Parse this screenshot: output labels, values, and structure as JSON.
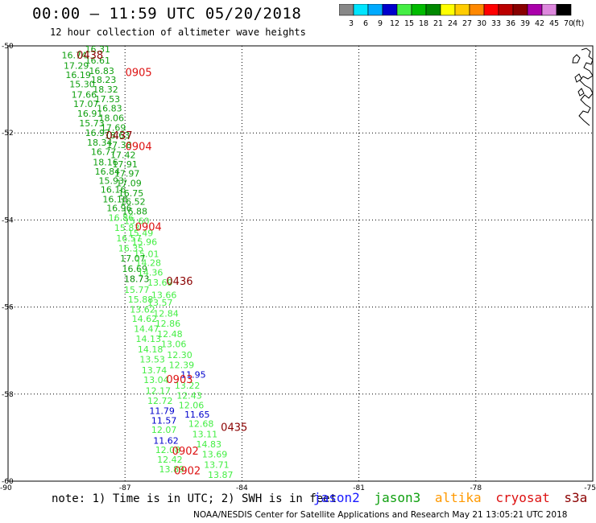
{
  "title": "00:00 – 11:59 UTC 05/20/2018",
  "subtitle": "12 hour collection of altimeter wave heights",
  "note": "note: 1) Time is in UTC; 2) SWH is in feet",
  "credit": "NOAA/NESDIS Center for Satellite Applications and Research   May 21 13:05:21 UTC 2018",
  "satellites": [
    {
      "name": "jason2",
      "color": "#1a1aff"
    },
    {
      "name": "jason3",
      "color": "#10a010"
    },
    {
      "name": "altika",
      "color": "#ff9900"
    },
    {
      "name": "cryosat",
      "color": "#dd1111"
    },
    {
      "name": "s3a",
      "color": "#8b0000"
    }
  ],
  "color_scale": {
    "unit": "(ft)",
    "bins": [
      {
        "label": "3",
        "color": "#888888"
      },
      {
        "label": "6",
        "color": "#00e5ff"
      },
      {
        "label": "9",
        "color": "#00aaff"
      },
      {
        "label": "12",
        "color": "#0000cc"
      },
      {
        "label": "15",
        "color": "#44ee44"
      },
      {
        "label": "18",
        "color": "#00bb00"
      },
      {
        "label": "21",
        "color": "#008800"
      },
      {
        "label": "24",
        "color": "#ffff00"
      },
      {
        "label": "27",
        "color": "#ffcc00"
      },
      {
        "label": "30",
        "color": "#ff8800"
      },
      {
        "label": "33",
        "color": "#ff0000"
      },
      {
        "label": "36",
        "color": "#bb0000"
      },
      {
        "label": "39",
        "color": "#880000"
      },
      {
        "label": "42",
        "color": "#aa00aa"
      },
      {
        "label": "45",
        "color": "#dd88dd"
      },
      {
        "label": "70",
        "color": "#000000"
      }
    ]
  },
  "chart_data": {
    "type": "scatter",
    "xlim": [
      -90,
      -75
    ],
    "ylim": [
      -60,
      -50
    ],
    "x_ticks": [
      -90,
      -87,
      -84,
      -81,
      -78,
      -75
    ],
    "y_ticks": [
      -50,
      -52,
      -54,
      -56,
      -58,
      -60
    ],
    "grid": true,
    "points": [
      {
        "x": -88.3,
        "y": -50.21,
        "v": "16.74",
        "c": "#10a010"
      },
      {
        "x": -87.7,
        "y": -50.07,
        "v": "16.31",
        "c": "#10a010"
      },
      {
        "x": -87.7,
        "y": -50.33,
        "v": "16.61",
        "c": "#10a010"
      },
      {
        "x": -88.25,
        "y": -50.45,
        "v": "17.29",
        "c": "#10a010"
      },
      {
        "x": -87.6,
        "y": -50.57,
        "v": "16.83",
        "c": "#10a010"
      },
      {
        "x": -88.2,
        "y": -50.67,
        "v": "16.19",
        "c": "#10a010"
      },
      {
        "x": -87.55,
        "y": -50.78,
        "v": "18.23",
        "c": "#10a010"
      },
      {
        "x": -88.1,
        "y": -50.88,
        "v": "15.30",
        "c": "#10a010"
      },
      {
        "x": -87.5,
        "y": -51.0,
        "v": "18.32",
        "c": "#10a010"
      },
      {
        "x": -88.05,
        "y": -51.12,
        "v": "17.66",
        "c": "#10a010"
      },
      {
        "x": -87.45,
        "y": -51.22,
        "v": "17.53",
        "c": "#10a010"
      },
      {
        "x": -88.0,
        "y": -51.33,
        "v": "17.07",
        "c": "#10a010"
      },
      {
        "x": -87.4,
        "y": -51.43,
        "v": "16.83",
        "c": "#10a010"
      },
      {
        "x": -87.9,
        "y": -51.55,
        "v": "16.91",
        "c": "#10a010"
      },
      {
        "x": -87.35,
        "y": -51.65,
        "v": "18.06",
        "c": "#10a010"
      },
      {
        "x": -87.85,
        "y": -51.77,
        "v": "15.73",
        "c": "#10a010"
      },
      {
        "x": -87.3,
        "y": -51.88,
        "v": "17.69",
        "c": "#10a010"
      },
      {
        "x": -87.7,
        "y": -52.0,
        "v": "16.97",
        "c": "#10a010"
      },
      {
        "x": -87.2,
        "y": -52.05,
        "v": "18.63",
        "c": "#10a010"
      },
      {
        "x": -87.65,
        "y": -52.22,
        "v": "18.34",
        "c": "#10a010"
      },
      {
        "x": -87.15,
        "y": -52.27,
        "v": "17.38",
        "c": "#10a010"
      },
      {
        "x": -87.55,
        "y": -52.43,
        "v": "16.77",
        "c": "#10a010"
      },
      {
        "x": -87.05,
        "y": -52.5,
        "v": "17.42",
        "c": "#10a010"
      },
      {
        "x": -87.5,
        "y": -52.67,
        "v": "18.16",
        "c": "#10a010"
      },
      {
        "x": -87.0,
        "y": -52.72,
        "v": "17.91",
        "c": "#10a010"
      },
      {
        "x": -87.45,
        "y": -52.88,
        "v": "16.84",
        "c": "#10a010"
      },
      {
        "x": -86.95,
        "y": -52.93,
        "v": "17.97",
        "c": "#10a010"
      },
      {
        "x": -87.35,
        "y": -53.1,
        "v": "15.93",
        "c": "#10a010"
      },
      {
        "x": -86.9,
        "y": -53.15,
        "v": "17.09",
        "c": "#10a010"
      },
      {
        "x": -87.3,
        "y": -53.3,
        "v": "16.16",
        "c": "#10a010"
      },
      {
        "x": -86.85,
        "y": -53.38,
        "v": "16.75",
        "c": "#10a010"
      },
      {
        "x": -87.25,
        "y": -53.52,
        "v": "16.18",
        "c": "#10a010"
      },
      {
        "x": -86.8,
        "y": -53.58,
        "v": "16.52",
        "c": "#10a010"
      },
      {
        "x": -87.15,
        "y": -53.72,
        "v": "16.96",
        "c": "#10a010"
      },
      {
        "x": -86.75,
        "y": -53.8,
        "v": "16.88",
        "c": "#10a010"
      },
      {
        "x": -87.1,
        "y": -53.95,
        "v": "16.86",
        "c": "#44ee44"
      },
      {
        "x": -86.7,
        "y": -54.02,
        "v": "15.60",
        "c": "#44ee44"
      },
      {
        "x": -86.95,
        "y": -54.18,
        "v": "15.83",
        "c": "#44ee44"
      },
      {
        "x": -86.6,
        "y": -54.3,
        "v": "15.49",
        "c": "#44ee44"
      },
      {
        "x": -86.9,
        "y": -54.42,
        "v": "16.57",
        "c": "#44ee44"
      },
      {
        "x": -86.5,
        "y": -54.5,
        "v": "15.96",
        "c": "#44ee44"
      },
      {
        "x": -86.85,
        "y": -54.65,
        "v": "16.35",
        "c": "#44ee44"
      },
      {
        "x": -86.45,
        "y": -54.78,
        "v": "15.01",
        "c": "#44ee44"
      },
      {
        "x": -86.8,
        "y": -54.88,
        "v": "17.07",
        "c": "#10a010"
      },
      {
        "x": -86.4,
        "y": -54.98,
        "v": "14.28",
        "c": "#44ee44"
      },
      {
        "x": -86.75,
        "y": -55.12,
        "v": "16.69",
        "c": "#10a010"
      },
      {
        "x": -86.35,
        "y": -55.2,
        "v": "14.36",
        "c": "#44ee44"
      },
      {
        "x": -86.7,
        "y": -55.35,
        "v": "18.73",
        "c": "#008800"
      },
      {
        "x": -86.1,
        "y": -55.43,
        "v": "13.69",
        "c": "#44ee44"
      },
      {
        "x": -86.7,
        "y": -55.6,
        "v": "15.77",
        "c": "#44ee44"
      },
      {
        "x": -86.0,
        "y": -55.72,
        "v": "13.66",
        "c": "#44ee44"
      },
      {
        "x": -86.6,
        "y": -55.82,
        "v": "15.88",
        "c": "#44ee44"
      },
      {
        "x": -86.1,
        "y": -55.9,
        "v": "13.57",
        "c": "#44ee44"
      },
      {
        "x": -86.55,
        "y": -56.05,
        "v": "13.62",
        "c": "#44ee44"
      },
      {
        "x": -85.95,
        "y": -56.15,
        "v": "12.84",
        "c": "#44ee44"
      },
      {
        "x": -86.5,
        "y": -56.27,
        "v": "14.62",
        "c": "#44ee44"
      },
      {
        "x": -85.9,
        "y": -56.38,
        "v": "12.86",
        "c": "#44ee44"
      },
      {
        "x": -86.45,
        "y": -56.5,
        "v": "14.47",
        "c": "#44ee44"
      },
      {
        "x": -85.85,
        "y": -56.62,
        "v": "12.48",
        "c": "#44ee44"
      },
      {
        "x": -86.4,
        "y": -56.73,
        "v": "14.13",
        "c": "#44ee44"
      },
      {
        "x": -85.75,
        "y": -56.85,
        "v": "13.06",
        "c": "#44ee44"
      },
      {
        "x": -86.35,
        "y": -56.97,
        "v": "14.18",
        "c": "#44ee44"
      },
      {
        "x": -85.6,
        "y": -57.1,
        "v": "12.30",
        "c": "#44ee44"
      },
      {
        "x": -86.3,
        "y": -57.2,
        "v": "13.53",
        "c": "#44ee44"
      },
      {
        "x": -85.55,
        "y": -57.33,
        "v": "12.39",
        "c": "#44ee44"
      },
      {
        "x": -86.25,
        "y": -57.45,
        "v": "13.74",
        "c": "#44ee44"
      },
      {
        "x": -85.25,
        "y": -57.55,
        "v": "11.95",
        "c": "#0000cc"
      },
      {
        "x": -86.2,
        "y": -57.67,
        "v": "13.04",
        "c": "#44ee44"
      },
      {
        "x": -85.4,
        "y": -57.8,
        "v": "13.22",
        "c": "#44ee44"
      },
      {
        "x": -86.15,
        "y": -57.92,
        "v": "12.17",
        "c": "#44ee44"
      },
      {
        "x": -85.35,
        "y": -58.03,
        "v": "12.43",
        "c": "#44ee44"
      },
      {
        "x": -86.1,
        "y": -58.15,
        "v": "12.72",
        "c": "#44ee44"
      },
      {
        "x": -85.3,
        "y": -58.25,
        "v": "12.06",
        "c": "#44ee44"
      },
      {
        "x": -86.05,
        "y": -58.38,
        "v": "11.79",
        "c": "#0000cc"
      },
      {
        "x": -85.15,
        "y": -58.47,
        "v": "11.65",
        "c": "#0000cc"
      },
      {
        "x": -86.0,
        "y": -58.6,
        "v": "11.57",
        "c": "#0000cc"
      },
      {
        "x": -85.05,
        "y": -58.68,
        "v": "12.68",
        "c": "#44ee44"
      },
      {
        "x": -86.0,
        "y": -58.82,
        "v": "12.07",
        "c": "#44ee44"
      },
      {
        "x": -84.95,
        "y": -58.92,
        "v": "13.11",
        "c": "#44ee44"
      },
      {
        "x": -85.95,
        "y": -59.07,
        "v": "11.62",
        "c": "#0000cc"
      },
      {
        "x": -84.85,
        "y": -59.15,
        "v": "14.83",
        "c": "#44ee44"
      },
      {
        "x": -85.9,
        "y": -59.28,
        "v": "12.08",
        "c": "#44ee44"
      },
      {
        "x": -84.7,
        "y": -59.38,
        "v": "13.69",
        "c": "#44ee44"
      },
      {
        "x": -85.85,
        "y": -59.5,
        "v": "12.42",
        "c": "#44ee44"
      },
      {
        "x": -84.65,
        "y": -59.62,
        "v": "13.71",
        "c": "#44ee44"
      },
      {
        "x": -85.8,
        "y": -59.72,
        "v": "13.89",
        "c": "#44ee44"
      },
      {
        "x": -84.55,
        "y": -59.85,
        "v": "13.87",
        "c": "#44ee44"
      }
    ],
    "pass_labels": [
      {
        "x": -87.9,
        "y": -50.2,
        "t": "0438",
        "c": "#8b0000"
      },
      {
        "x": -86.65,
        "y": -50.6,
        "t": "0905",
        "c": "#dd1111"
      },
      {
        "x": -87.15,
        "y": -52.05,
        "t": "0437",
        "c": "#8b0000"
      },
      {
        "x": -86.65,
        "y": -52.3,
        "t": "0904",
        "c": "#dd1111"
      },
      {
        "x": -86.4,
        "y": -54.15,
        "t": "0904",
        "c": "#dd1111"
      },
      {
        "x": -85.6,
        "y": -55.4,
        "t": "0436",
        "c": "#8b0000"
      },
      {
        "x": -85.6,
        "y": -57.65,
        "t": "0903",
        "c": "#dd1111"
      },
      {
        "x": -84.2,
        "y": -58.75,
        "t": "0435",
        "c": "#8b0000"
      },
      {
        "x": -85.45,
        "y": -59.3,
        "t": "0902",
        "c": "#dd1111"
      },
      {
        "x": -85.4,
        "y": -59.75,
        "t": "0902",
        "c": "#dd1111"
      }
    ]
  }
}
